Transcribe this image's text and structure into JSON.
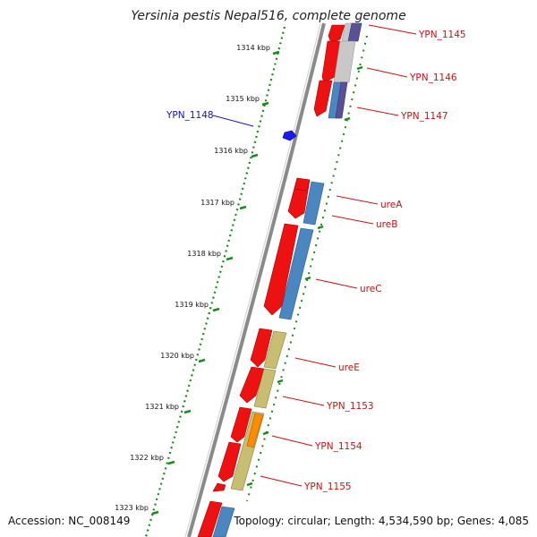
{
  "header": {
    "title": "Yersinia pestis Nepal516, complete genome"
  },
  "footer": {
    "accession": "Accession: NC_008149",
    "summary": "Topology: circular; Length: 4,534,590 bp; Genes: 4,085"
  },
  "colors": {
    "backbone": "#8a8a8a",
    "ruler_ticks": "#1a8a1a",
    "cds_forward": "#ee1111",
    "cds_blue": "#4a86c0",
    "cds_purple": "#5a5096",
    "cds_khaki": "#c7be72",
    "cds_orange": "#ff8c00",
    "cds_grey": "#c8c8c8",
    "label_red": "#cc1111",
    "label_blue": "#1111cc"
  },
  "ruler": {
    "tick_labels": [
      "1314 kbp",
      "1315 kbp",
      "1316 kbp",
      "1317 kbp",
      "1318 kbp",
      "1319 kbp",
      "1320 kbp",
      "1321 kbp",
      "1322 kbp",
      "1323 kbp"
    ]
  },
  "genes": [
    {
      "label": "YPN_1145",
      "color": "red"
    },
    {
      "label": "YPN_1146",
      "color": "red"
    },
    {
      "label": "YPN_1147",
      "color": "red"
    },
    {
      "label": "YPN_1148",
      "color": "blue"
    },
    {
      "label": "ureA",
      "color": "red"
    },
    {
      "label": "ureB",
      "color": "red"
    },
    {
      "label": "ureC",
      "color": "red"
    },
    {
      "label": "ureE",
      "color": "red"
    },
    {
      "label": "YPN_1153",
      "color": "red"
    },
    {
      "label": "YPN_1154",
      "color": "red"
    },
    {
      "label": "YPN_1155",
      "color": "red"
    }
  ]
}
